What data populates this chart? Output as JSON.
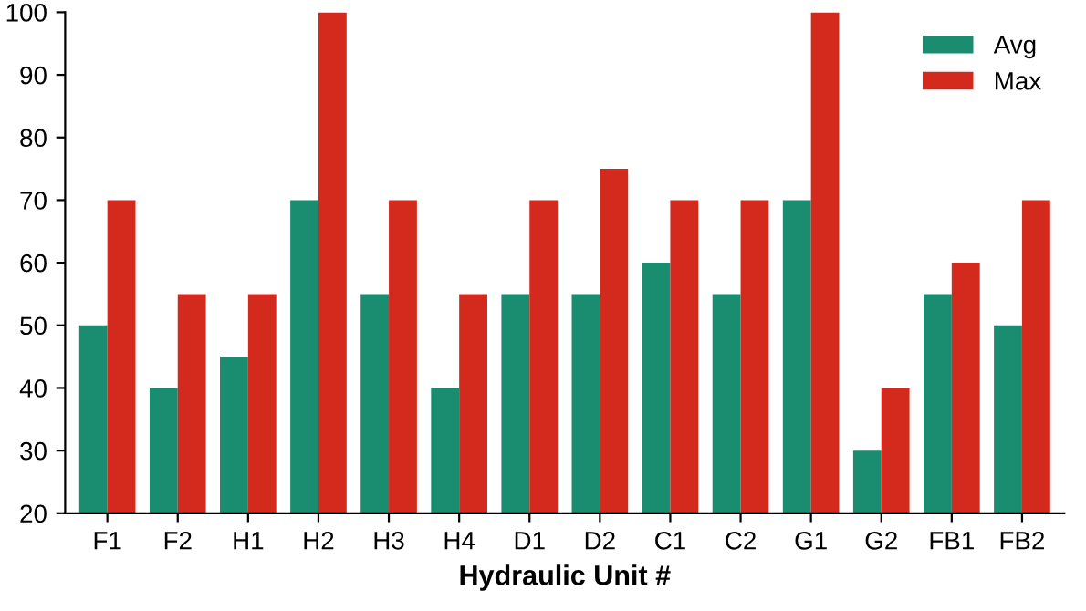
{
  "chart_data": {
    "type": "bar",
    "xlabel": "Hydraulic Unit #",
    "categories": [
      "F1",
      "F2",
      "H1",
      "H2",
      "H3",
      "H4",
      "D1",
      "D2",
      "C1",
      "C2",
      "G1",
      "G2",
      "FB1",
      "FB2"
    ],
    "series": [
      {
        "name": "Avg",
        "color": "#1a8c70",
        "values": [
          50,
          40,
          45,
          70,
          55,
          40,
          55,
          55,
          60,
          55,
          70,
          30,
          55,
          50
        ]
      },
      {
        "name": "Max",
        "color": "#d42a1e",
        "values": [
          70,
          55,
          55,
          100,
          70,
          55,
          70,
          75,
          70,
          70,
          100,
          40,
          60,
          70
        ]
      }
    ],
    "ylim": [
      20,
      100
    ],
    "yticks": [
      20,
      30,
      40,
      50,
      60,
      70,
      80,
      90,
      100
    ],
    "grid": false,
    "legend": "top right"
  }
}
